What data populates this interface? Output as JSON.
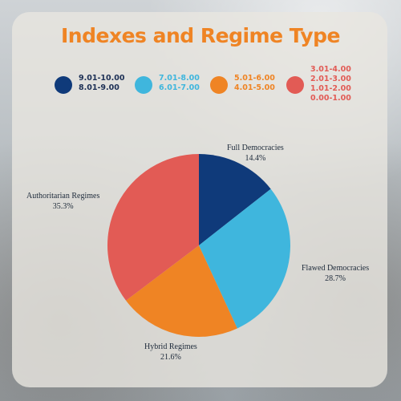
{
  "title": "Indexes and Regime Type",
  "legend": [
    {
      "icon": "dark-blue-dot",
      "color": "#0f3a7a",
      "text_color": "#1c2f55",
      "lines": [
        "9.01-10.00",
        "8.01-9.00"
      ]
    },
    {
      "icon": "light-blue-dot",
      "color": "#3fb6dd",
      "text_color": "#3fb6dd",
      "lines": [
        "7.01-8.00",
        "6.01-7.00"
      ]
    },
    {
      "icon": "orange-dot",
      "color": "#ef8424",
      "text_color": "#ef8424",
      "lines": [
        "5.01-6.00",
        "4.01-5.00"
      ]
    },
    {
      "icon": "red-dot",
      "color": "#e25b55",
      "text_color": "#e25b55",
      "lines": [
        "3.01-4.00",
        "2.01-3.00",
        "1.01-2.00",
        "0.00-1.00"
      ]
    }
  ],
  "chart_data": {
    "type": "pie",
    "title": "Indexes and Regime Type",
    "slices": [
      {
        "label": "Full Democracies",
        "value": 14.4,
        "value_label": "14.4%",
        "color": "#0f3a7a"
      },
      {
        "label": "Flawed Democracies",
        "value": 28.7,
        "value_label": "28.7%",
        "color": "#3fb6dd"
      },
      {
        "label": "Hybrid Regimes",
        "value": 21.6,
        "value_label": "21.6%",
        "color": "#ef8424"
      },
      {
        "label": "Authoritarian Regimes",
        "value": 35.3,
        "value_label": "35.3%",
        "color": "#e25b55"
      }
    ],
    "start_angle": "12 o'clock",
    "direction": "clockwise"
  }
}
